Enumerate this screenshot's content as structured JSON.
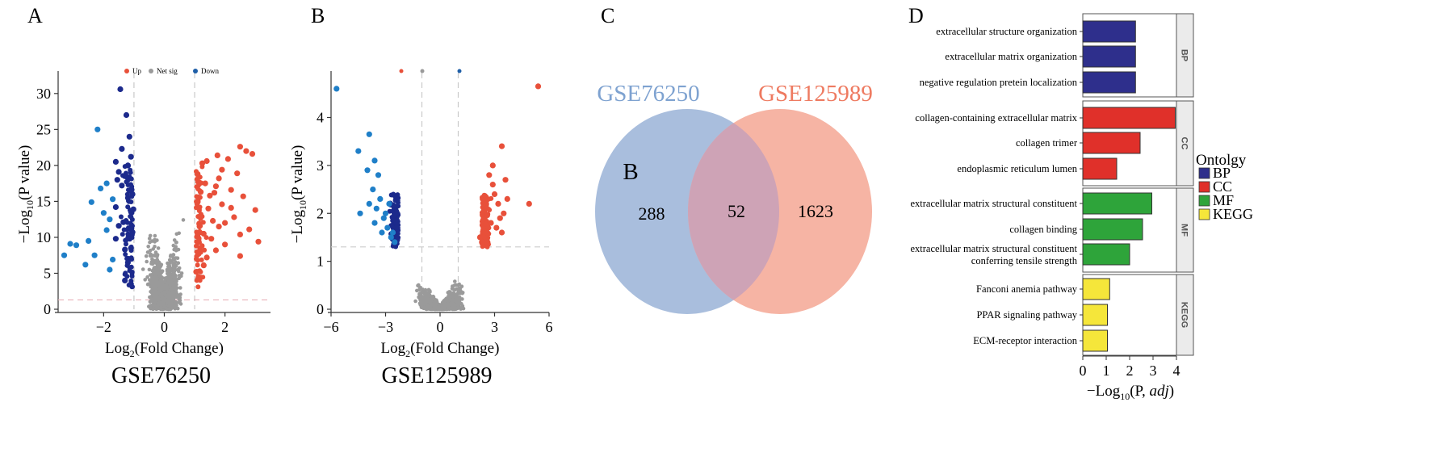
{
  "panel_letters": [
    "A",
    "B",
    "C",
    "D"
  ],
  "chart_data": [
    {
      "type": "scatter",
      "subtype": "volcano",
      "title": "GSE76250",
      "xlabel": "Log2(Fold Change)",
      "ylabel": "−Log10(P value)",
      "xlim": [
        -3.5,
        3.5
      ],
      "ylim": [
        0,
        32
      ],
      "xticks": [
        -2,
        0,
        2
      ],
      "yticks": [
        0,
        5,
        10,
        15,
        20,
        25,
        30
      ],
      "fc_cutoff": [
        -1,
        1
      ],
      "p_cutoff_line": 1.3,
      "legend_position": "top",
      "legend": [
        {
          "name": "Up",
          "color": "#e8503a"
        },
        {
          "name": "Net sig",
          "color": "#9a9a9a"
        },
        {
          "name": "Down",
          "color": "#1f5fa8"
        }
      ],
      "colors": {
        "up": "#e8503a",
        "nonsig": "#9a9a9a",
        "down_light": "#1f7fc8",
        "down_dark": "#1c2a8c"
      },
      "series": [
        {
          "name": "Down",
          "points": [
            [
              -3.3,
              7.5
            ],
            [
              -3.1,
              9.1
            ],
            [
              -2.9,
              8.9
            ],
            [
              -2.6,
              6.2
            ],
            [
              -2.4,
              14.9
            ],
            [
              -2.3,
              7.5
            ],
            [
              -2.2,
              25.0
            ],
            [
              -2.1,
              16.8
            ],
            [
              -2.0,
              13.4
            ],
            [
              -1.9,
              11.0
            ],
            [
              -1.8,
              5.5
            ],
            [
              -1.7,
              6.9
            ],
            [
              -1.6,
              9.8
            ],
            [
              -1.55,
              18.0
            ],
            [
              -1.5,
              19.1
            ],
            [
              -1.45,
              30.6
            ],
            [
              -1.4,
              22.3
            ],
            [
              -1.35,
              12.1
            ],
            [
              -1.3,
              8.3
            ],
            [
              -1.25,
              27.0
            ],
            [
              -1.2,
              15.5
            ],
            [
              -1.15,
              24.0
            ],
            [
              -1.1,
              21.2
            ],
            [
              -1.05,
              10.7
            ],
            [
              -1.02,
              13.9
            ],
            [
              -1.6,
              20.5
            ],
            [
              -1.7,
              15.3
            ],
            [
              -1.2,
              20.0
            ],
            [
              -1.4,
              17.2
            ],
            [
              -1.3,
              4.0
            ],
            [
              -1.1,
              3.5
            ],
            [
              -1.9,
              17.5
            ],
            [
              -2.5,
              9.5
            ],
            [
              -1.8,
              12.5
            ],
            [
              -1.5,
              11.6
            ],
            [
              -1.2,
              6.5
            ],
            [
              -1.3,
              18.5
            ],
            [
              -1.05,
              16.0
            ],
            [
              -1.6,
              14.2
            ],
            [
              -1.1,
              8.5
            ]
          ]
        },
        {
          "name": "Up",
          "points": [
            [
              1.05,
              5.2
            ],
            [
              1.1,
              18.8
            ],
            [
              1.2,
              13.0
            ],
            [
              1.3,
              10.5
            ],
            [
              1.35,
              17.5
            ],
            [
              1.4,
              20.6
            ],
            [
              1.5,
              15.8
            ],
            [
              1.6,
              12.3
            ],
            [
              1.65,
              16.2
            ],
            [
              1.7,
              8.2
            ],
            [
              1.75,
              21.4
            ],
            [
              1.8,
              11.5
            ],
            [
              1.9,
              14.6
            ],
            [
              2.0,
              9.0
            ],
            [
              2.1,
              20.9
            ],
            [
              2.2,
              16.6
            ],
            [
              2.3,
              12.8
            ],
            [
              2.4,
              18.9
            ],
            [
              2.5,
              7.4
            ],
            [
              2.6,
              15.7
            ],
            [
              2.7,
              22.0
            ],
            [
              2.8,
              11.1
            ],
            [
              2.9,
              21.6
            ],
            [
              3.0,
              13.8
            ],
            [
              3.1,
              9.4
            ],
            [
              2.5,
              10.4
            ],
            [
              1.2,
              16.3
            ],
            [
              1.3,
              6.1
            ],
            [
              1.45,
              14.0
            ],
            [
              1.9,
              19.4
            ],
            [
              1.15,
              11.9
            ],
            [
              1.55,
              9.8
            ],
            [
              2.2,
              14.1
            ],
            [
              1.7,
              17.1
            ],
            [
              1.25,
              20.3
            ],
            [
              2.0,
              12.0
            ],
            [
              2.5,
              22.6
            ],
            [
              1.4,
              7.2
            ],
            [
              1.8,
              18.2
            ],
            [
              1.1,
              14.9
            ]
          ]
        }
      ]
    },
    {
      "type": "scatter",
      "subtype": "volcano",
      "title": "GSE125989",
      "xlabel": "Log2(Fold Change)",
      "ylabel": "−Log10(P value)",
      "xlim": [
        -6,
        6
      ],
      "ylim": [
        0,
        4.8
      ],
      "xticks": [
        -6,
        -3,
        0,
        3,
        6
      ],
      "yticks": [
        0,
        1,
        2,
        3,
        4
      ],
      "fc_cutoff": [
        -1,
        1
      ],
      "p_cutoff_line": 1.3,
      "legend_position": "top",
      "colors": {
        "up": "#e8503a",
        "nonsig": "#9a9a9a",
        "down_light": "#1f7fc8",
        "down_dark": "#1c2a8c"
      },
      "series": [
        {
          "name": "Down",
          "points": [
            [
              -5.7,
              4.6
            ],
            [
              -3.9,
              3.65
            ],
            [
              -3.6,
              3.1
            ],
            [
              -4.5,
              3.3
            ],
            [
              -3.4,
              2.8
            ],
            [
              -4.0,
              2.9
            ],
            [
              -3.7,
              2.5
            ],
            [
              -3.9,
              2.2
            ],
            [
              -4.4,
              2.0
            ],
            [
              -3.3,
              2.3
            ],
            [
              -3.1,
              1.9
            ],
            [
              -3.5,
              2.1
            ],
            [
              -2.9,
              1.7
            ],
            [
              -3.0,
              2.0
            ],
            [
              -2.7,
              1.5
            ],
            [
              -2.6,
              1.6
            ],
            [
              -3.2,
              1.6
            ],
            [
              -2.5,
              1.4
            ],
            [
              -3.6,
              1.8
            ],
            [
              -2.8,
              2.2
            ]
          ]
        },
        {
          "name": "Up",
          "points": [
            [
              5.4,
              4.65
            ],
            [
              4.9,
              2.2
            ],
            [
              3.4,
              3.4
            ],
            [
              3.6,
              2.7
            ],
            [
              3.0,
              2.4
            ],
            [
              3.2,
              2.2
            ],
            [
              2.7,
              2.8
            ],
            [
              2.9,
              2.6
            ],
            [
              3.3,
              1.9
            ],
            [
              2.6,
              1.6
            ],
            [
              2.4,
              1.5
            ],
            [
              3.1,
              1.7
            ],
            [
              2.8,
              1.8
            ],
            [
              2.5,
              2.1
            ],
            [
              3.5,
              2.0
            ],
            [
              2.3,
              1.4
            ],
            [
              3.7,
              2.3
            ],
            [
              2.9,
              3.0
            ],
            [
              2.2,
              1.5
            ],
            [
              3.4,
              1.6
            ]
          ]
        }
      ]
    },
    {
      "type": "venn",
      "sets": [
        {
          "name": "GSE76250",
          "only": 288,
          "color": "#a9bedd"
        },
        {
          "name": "GSE125989",
          "only": 1623,
          "color": "#f6b4a4"
        }
      ],
      "intersection": 52,
      "overlap_color": "#cea3b6",
      "inner_label": "B"
    },
    {
      "type": "bar",
      "orientation": "horizontal",
      "xlabel": "−Log10(P, adj)",
      "xlim": [
        0,
        4
      ],
      "xticks": [
        0,
        1,
        2,
        3,
        4
      ],
      "legend_title": "Ontolgy",
      "legend_position": "right",
      "legend": [
        {
          "name": "BP",
          "color": "#2e2f8c"
        },
        {
          "name": "CC",
          "color": "#e0302a"
        },
        {
          "name": "MF",
          "color": "#2ea43a"
        },
        {
          "name": "KEGG",
          "color": "#f5e63a"
        }
      ],
      "groups": [
        {
          "name": "BP",
          "color": "#2e2f8c",
          "bars": [
            {
              "label": [
                "extracellular structure organization"
              ],
              "value": 2.25
            },
            {
              "label": [
                "extracellular matrix organization"
              ],
              "value": 2.25
            },
            {
              "label": [
                "negative regulation pretein localization"
              ],
              "value": 2.25
            }
          ]
        },
        {
          "name": "CC",
          "color": "#e0302a",
          "bars": [
            {
              "label": [
                "collagen-containing extracellular matrix"
              ],
              "value": 3.95
            },
            {
              "label": [
                "collagen trimer"
              ],
              "value": 2.45
            },
            {
              "label": [
                "endoplasmic reticulum lumen"
              ],
              "value": 1.45
            }
          ]
        },
        {
          "name": "MF",
          "color": "#2ea43a",
          "bars": [
            {
              "label": [
                "extracellular matrix structural constituent"
              ],
              "value": 2.95
            },
            {
              "label": [
                "collagen binding"
              ],
              "value": 2.55
            },
            {
              "label": [
                "extracellular matrix structural constituent",
                "conferring tensile strength"
              ],
              "value": 2.0
            }
          ]
        },
        {
          "name": "KEGG",
          "color": "#f5e63a",
          "bars": [
            {
              "label": [
                "Fanconi anemia pathway"
              ],
              "value": 1.15
            },
            {
              "label": [
                "PPAR signaling pathway"
              ],
              "value": 1.05
            },
            {
              "label": [
                "ECM-receptor interaction"
              ],
              "value": 1.05
            }
          ]
        }
      ]
    }
  ]
}
